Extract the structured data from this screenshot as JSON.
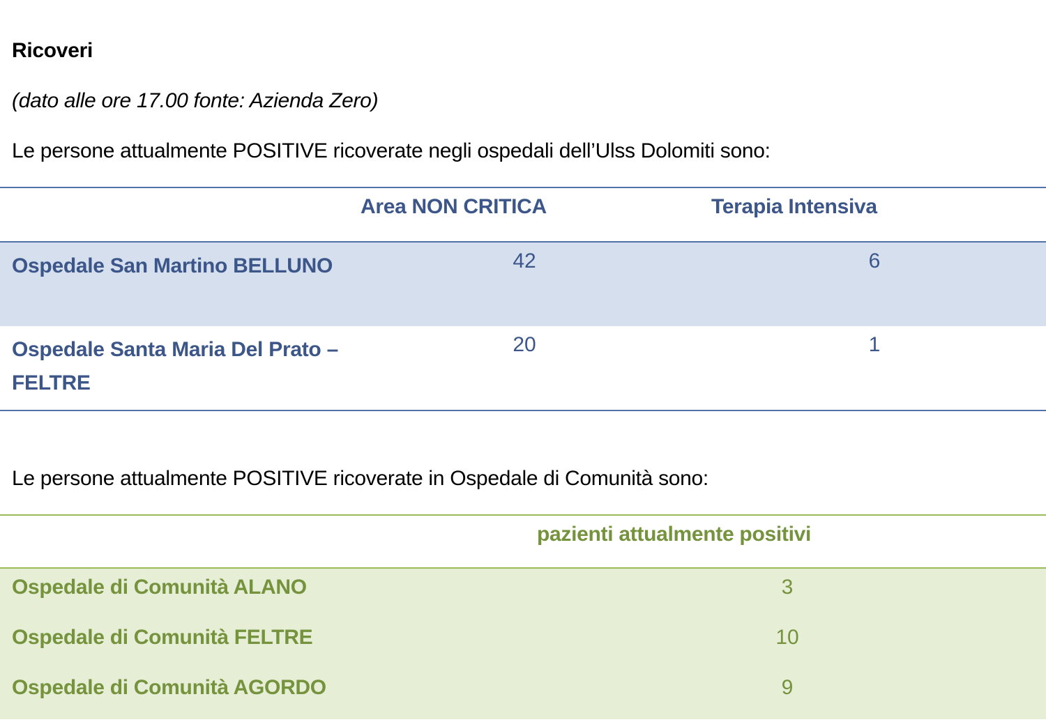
{
  "title": "Ricoveri",
  "subtitle": "(dato alle ore 17.00 fonte: Azienda Zero)",
  "hospitals": {
    "intro": "Le persone attualmente POSITIVE ricoverate negli ospedali dell’Ulss Dolomiti sono:",
    "columns": [
      "",
      "Area NON CRITICA",
      "Terapia Intensiva"
    ],
    "rows": [
      {
        "name": "Ospedale San Martino BELLUNO",
        "non_critica": "42",
        "intensiva": "6"
      },
      {
        "name": "Ospedale Santa Maria Del Prato – FELTRE",
        "non_critica": "20",
        "intensiva": "1"
      }
    ],
    "accent_color": "#4f71a6",
    "row_shade_color": "#d5dfee"
  },
  "community": {
    "intro": "Le persone attualmente POSITIVE ricoverate in Ospedale di Comunità sono:",
    "columns": [
      "",
      "pazienti attualmente positivi"
    ],
    "rows": [
      {
        "name": "Ospedale di Comunità ALANO",
        "positivi": "3"
      },
      {
        "name": "Ospedale di Comunità FELTRE",
        "positivi": "10"
      },
      {
        "name": "Ospedale di Comunità AGORDO",
        "positivi": "9"
      }
    ],
    "accent_color": "#9bbb59",
    "row_shade_color": "#e6eed6"
  }
}
